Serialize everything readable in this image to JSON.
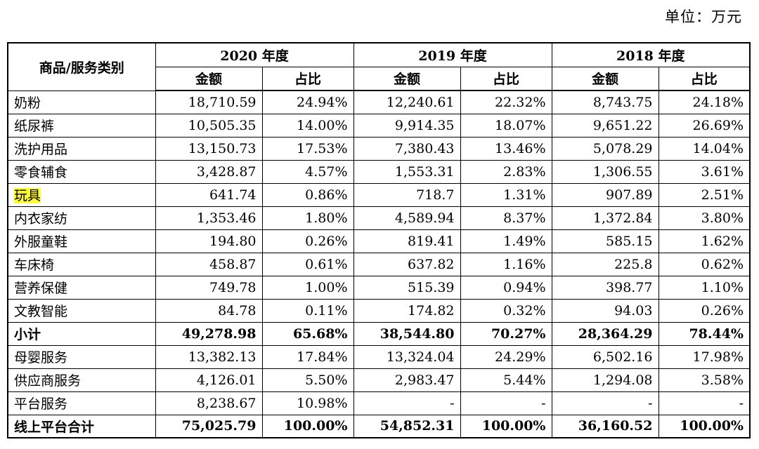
{
  "unit_label": "单位：万元",
  "header": {
    "category": "商品/服务类别",
    "years": [
      "2020 年度",
      "2019 年度",
      "2018 年度"
    ],
    "amount": "金额",
    "ratio": "占比"
  },
  "rows": [
    {
      "name": "奶粉",
      "v": [
        "18,710.59",
        "24.94%",
        "12,240.61",
        "22.32%",
        "8,743.75",
        "24.18%"
      ]
    },
    {
      "name": "纸尿裤",
      "v": [
        "10,505.35",
        "14.00%",
        "9,914.35",
        "18.07%",
        "9,651.22",
        "26.69%"
      ]
    },
    {
      "name": "洗护用品",
      "v": [
        "13,150.73",
        "17.53%",
        "7,380.43",
        "13.46%",
        "5,078.29",
        "14.04%"
      ]
    },
    {
      "name": "零食辅食",
      "v": [
        "3,428.87",
        "4.57%",
        "1,553.31",
        "2.83%",
        "1,306.55",
        "3.61%"
      ]
    },
    {
      "name": "玩具",
      "v": [
        "641.74",
        "0.86%",
        "718.7",
        "1.31%",
        "907.89",
        "2.51%"
      ],
      "highlight": true
    },
    {
      "name": "内衣家纺",
      "v": [
        "1,353.46",
        "1.80%",
        "4,589.94",
        "8.37%",
        "1,372.84",
        "3.80%"
      ]
    },
    {
      "name": "外服童鞋",
      "v": [
        "194.80",
        "0.26%",
        "819.41",
        "1.49%",
        "585.15",
        "1.62%"
      ]
    },
    {
      "name": "车床椅",
      "v": [
        "458.87",
        "0.61%",
        "637.82",
        "1.16%",
        "225.8",
        "0.62%"
      ]
    },
    {
      "name": "营养保健",
      "v": [
        "749.78",
        "1.00%",
        "515.39",
        "0.94%",
        "398.77",
        "1.10%"
      ]
    },
    {
      "name": "文教智能",
      "v": [
        "84.78",
        "0.11%",
        "174.82",
        "0.32%",
        "94.03",
        "0.26%"
      ]
    },
    {
      "name": "小计",
      "v": [
        "49,278.98",
        "65.68%",
        "38,544.80",
        "70.27%",
        "28,364.29",
        "78.44%"
      ],
      "bold": true
    },
    {
      "name": "母婴服务",
      "v": [
        "13,382.13",
        "17.84%",
        "13,324.04",
        "24.29%",
        "6,502.16",
        "17.98%"
      ]
    },
    {
      "name": "供应商服务",
      "v": [
        "4,126.01",
        "5.50%",
        "2,983.47",
        "5.44%",
        "1,294.08",
        "3.58%"
      ]
    },
    {
      "name": "平台服务",
      "v": [
        "8,238.67",
        "10.98%",
        "-",
        "-",
        "-",
        "-"
      ]
    },
    {
      "name": "线上平台合计",
      "v": [
        "75,025.79",
        "100.00%",
        "54,852.31",
        "100.00%",
        "36,160.52",
        "100.00%"
      ],
      "bold": true
    }
  ],
  "highlight_color": "#ffff33"
}
